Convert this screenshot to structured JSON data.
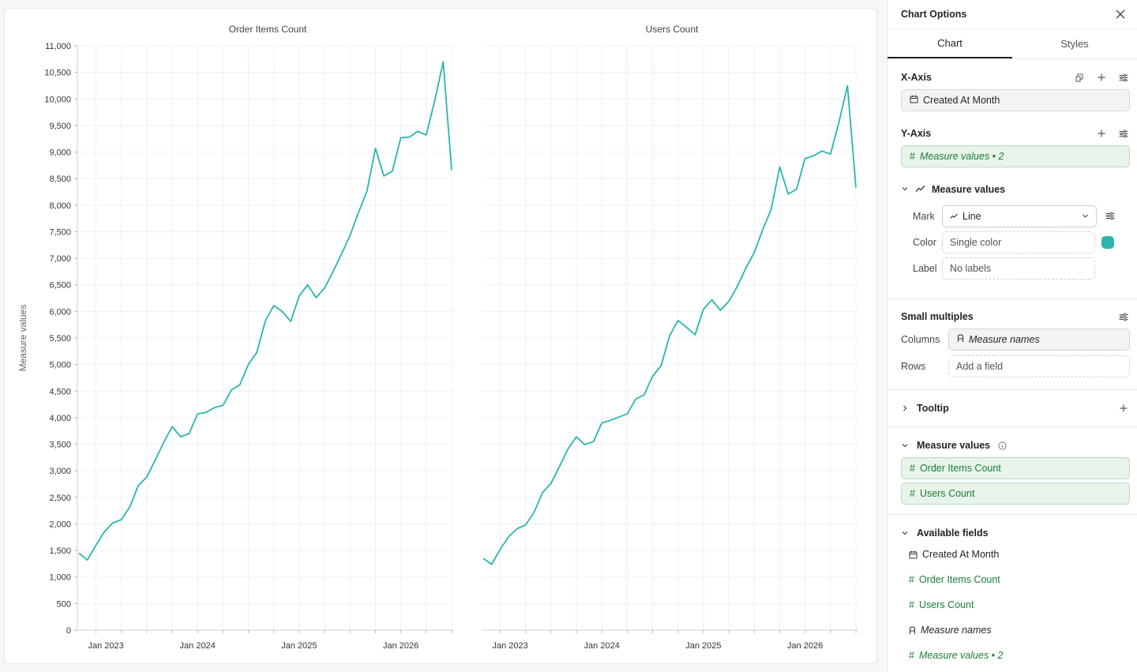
{
  "charts": [
    {
      "title": "Order Items Count",
      "x_ticks": [
        "Jan 2023",
        "Jan 2024",
        "Jan 2025",
        "Jan 2026"
      ],
      "values": [
        1450,
        1320,
        1600,
        1850,
        2020,
        2080,
        2320,
        2720,
        2880,
        3200,
        3530,
        3830,
        3640,
        3700,
        4070,
        4100,
        4190,
        4230,
        4520,
        4620,
        5000,
        5230,
        5820,
        6110,
        6000,
        5810,
        6290,
        6500,
        6260,
        6440,
        6750,
        7080,
        7430,
        7860,
        8260,
        9070,
        8550,
        8640,
        9270,
        9280,
        9390,
        9320,
        9960,
        10700,
        8660
      ]
    },
    {
      "title": "Users Count",
      "x_ticks": [
        "Jan 2023",
        "Jan 2024",
        "Jan 2025",
        "Jan 2026"
      ],
      "values": [
        1350,
        1240,
        1520,
        1760,
        1910,
        1980,
        2220,
        2590,
        2760,
        3080,
        3410,
        3640,
        3490,
        3550,
        3900,
        3950,
        4010,
        4070,
        4350,
        4430,
        4780,
        4980,
        5540,
        5830,
        5700,
        5560,
        6040,
        6220,
        6020,
        6190,
        6470,
        6810,
        7110,
        7540,
        7920,
        8720,
        8210,
        8300,
        8880,
        8930,
        9020,
        8960,
        9560,
        10250,
        8330
      ]
    }
  ],
  "chart_data": {
    "type": "line",
    "ylabel": "Measure values",
    "ylim": [
      0,
      11000
    ],
    "y_ticks": [
      "0",
      "500",
      "1,000",
      "1,500",
      "2,000",
      "2,500",
      "3,000",
      "3,500",
      "4,000",
      "4,500",
      "5,000",
      "5,500",
      "6,000",
      "6,500",
      "7,000",
      "7,500",
      "8,000",
      "8,500",
      "9,000",
      "9,500",
      "10,000",
      "10,500",
      "11,000"
    ],
    "x_start": "2022-11",
    "grid": true,
    "color": "#2bb5ac"
  },
  "panel": {
    "title": "Chart Options",
    "tabs": [
      {
        "label": "Chart",
        "active": true
      },
      {
        "label": "Styles",
        "active": false
      }
    ],
    "x_axis": {
      "title": "X-Axis",
      "field": "Created At Month"
    },
    "y_axis": {
      "title": "Y-Axis",
      "field": "Measure values • 2"
    },
    "measure_values_group": {
      "title": "Measure values",
      "mark_label": "Mark",
      "mark_value": "Line",
      "color_label": "Color",
      "color_value": "Single color",
      "color_swatch": "#2bb5ac",
      "label_label": "Label",
      "label_value": "No labels"
    },
    "small_multiples": {
      "title": "Small multiples",
      "columns_label": "Columns",
      "columns_value": "Measure names",
      "rows_label": "Rows",
      "rows_placeholder": "Add a field"
    },
    "tooltip": {
      "title": "Tooltip"
    },
    "measure_values": {
      "title": "Measure values",
      "items": [
        "Order Items Count",
        "Users Count"
      ]
    },
    "available_fields": {
      "title": "Available fields",
      "items": [
        {
          "label": "Created At Month",
          "kind": "date"
        },
        {
          "label": "Order Items Count",
          "kind": "measure"
        },
        {
          "label": "Users Count",
          "kind": "measure"
        },
        {
          "label": "Measure names",
          "kind": "dimension"
        },
        {
          "label": "Measure values • 2",
          "kind": "measure"
        }
      ]
    }
  }
}
